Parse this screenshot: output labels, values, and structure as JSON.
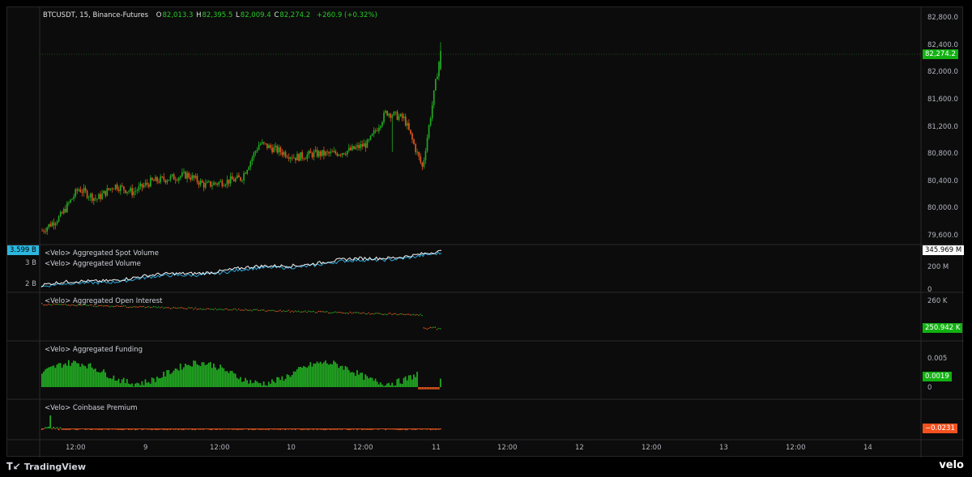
{
  "header": {
    "symbol": "BTCUSDT, 15, Binance-Futures",
    "open_label": "O",
    "open_value": "82,013.3",
    "high_label": "H",
    "high_value": "82,395.5",
    "low_label": "L",
    "low_value": "82,009.4",
    "close_label": "C",
    "close_value": "82,274.2",
    "change": "+260.9 (+0.32%)"
  },
  "panes": {
    "volume_spot_label": "<Velo> Aggregated Spot Volume",
    "volume_agg_label": "<Velo> Aggregated Volume",
    "oi_label": "<Velo> Aggregated Open Interest",
    "funding_label": "<Velo> Aggregated Funding",
    "premium_label": "<Velo> Coinbase Premium"
  },
  "price_axis": [
    "82,800.0",
    "82,400.0",
    "82,000.0",
    "81,600.0",
    "81,200.0",
    "80,800.0",
    "80,400.0",
    "80,000.0",
    "79,600.0"
  ],
  "price_tag": "82,274.2",
  "volume_axis_right": [
    "200 M",
    "0"
  ],
  "volume_tag_right": "345.969 M",
  "volume_axis_left": [
    "3 B",
    "2 B"
  ],
  "volume_tag_left": "3.599 B",
  "oi_axis": [
    "260 K"
  ],
  "oi_tag": "250.942 K",
  "funding_axis": [
    "0.005",
    "0"
  ],
  "funding_tag": "0.0019",
  "premium_tag": "−0.0231",
  "time_axis": [
    "12:00",
    "9",
    "12:00",
    "10",
    "12:00",
    "11",
    "12:00",
    "12",
    "12:00",
    "13",
    "12:00",
    "14"
  ],
  "brand": {
    "tradingview": "TradingView",
    "velo": "velo"
  },
  "colors": {
    "up": "#22ab22",
    "down": "#e2561f",
    "bg": "#0c0c0c",
    "spot_line": "#f5f5f5",
    "agg_line": "#29a3d8",
    "price_tag_bg": "#12b112",
    "premium_tag_bg": "#f4511e",
    "left_tag_bg": "#2bb7df"
  },
  "chart_data": [
    {
      "type": "candlestick",
      "title": "BTCUSDT, 15, Binance-Futures",
      "ylim": [
        79500,
        82900
      ],
      "x_labels": [
        "12:00",
        "9",
        "12:00",
        "10",
        "12:00",
        "11"
      ],
      "approx_closes": [
        79700,
        79900,
        80300,
        80150,
        80350,
        80250,
        80400,
        80450,
        80500,
        80350,
        80400,
        80450,
        80950,
        80850,
        80750,
        80800,
        80800,
        80850,
        80950,
        81400,
        81300,
        80600,
        82274.2
      ],
      "last": {
        "open": 82013.3,
        "high": 82395.5,
        "low": 82009.4,
        "close": 82274.2
      }
    },
    {
      "type": "line",
      "series": [
        {
          "name": "<Velo> Aggregated Spot Volume",
          "last": "345.969 M"
        },
        {
          "name": "<Velo> Aggregated Volume",
          "last": "3.599 B"
        }
      ]
    },
    {
      "type": "line",
      "series": [
        {
          "name": "<Velo> Aggregated Open Interest",
          "last": "250.942 K"
        }
      ]
    },
    {
      "type": "bar",
      "series": [
        {
          "name": "<Velo> Aggregated Funding",
          "last": "0.0019"
        }
      ],
      "ylim": [
        -0.001,
        0.006
      ]
    },
    {
      "type": "bar",
      "series": [
        {
          "name": "<Velo> Coinbase Premium",
          "last": "−0.0231"
        }
      ]
    }
  ]
}
